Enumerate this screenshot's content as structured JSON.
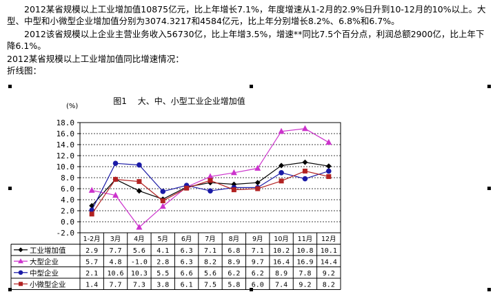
{
  "text": {
    "para1": "　　2012某省规模以上工业增加值10875亿元，比上年增长7.1%，年度增速从1-2月的2.9%日升到10-12月的10%以上。大型、中型和小微型企业增加值分别为3074.3217和4584亿元，比上年分别增长8.2%、6.8%和6.7%。",
    "para2": "　　2012该省规模以上企业主营业务收入56730亿，比上年增3.5%，增速**同比7.5个百分点，利润总额2900亿，比上年下降6.1%。",
    "para3": "2012某省规模以上工业增加值同比增速情况：",
    "para4": "折线图："
  },
  "chart_data": {
    "type": "line",
    "title": "图1　 大、中、小型工业企业增加值",
    "unit_label": "(%)",
    "ylim": [
      -2.0,
      18.0
    ],
    "yticks": [
      "18.0",
      "16.0",
      "14.0",
      "12.0",
      "10.0",
      "8.0",
      "6.0",
      "4.0",
      "2.0",
      "0.0",
      "-2.0"
    ],
    "categories": [
      "1-2月",
      "3月",
      "4月",
      "5月",
      "6月",
      "7月",
      "8月",
      "9月",
      "10月",
      "11月",
      "12月"
    ],
    "grid": true,
    "legend": "table-bottom",
    "series": [
      {
        "name": "工业增加值",
        "color": "#000000",
        "marker": "diamond",
        "values": [
          2.9,
          7.7,
          5.6,
          4.1,
          6.3,
          7.1,
          6.8,
          7.1,
          10.2,
          10.8,
          10.1
        ],
        "labels": [
          "2.9",
          "7.7",
          "5.6",
          "4.1",
          "6.3",
          "7.1",
          "6.8",
          "7.1",
          "10.2",
          "10.8",
          "10.1"
        ]
      },
      {
        "name": "大型企业",
        "color": "#cc33cc",
        "marker": "triangle",
        "values": [
          5.7,
          4.8,
          -1.0,
          2.8,
          6.3,
          8.2,
          8.9,
          9.7,
          16.4,
          16.9,
          14.4
        ],
        "labels": [
          "5.7",
          "4.8",
          "-1.0",
          "2.8",
          "6.3",
          "8.2",
          "8.9",
          "9.7",
          "16.4",
          "16.9",
          "14.4"
        ]
      },
      {
        "name": "中型企业",
        "color": "#1a1aa6",
        "marker": "circle",
        "values": [
          2.1,
          10.6,
          10.3,
          5.5,
          6.6,
          5.6,
          6.2,
          6.2,
          8.9,
          7.8,
          9.2
        ],
        "labels": [
          "2.1",
          "10.6",
          "10.3",
          "5.5",
          "6.6",
          "5.6",
          "6.2",
          "6.2",
          "8.9",
          "7.8",
          "9.2"
        ]
      },
      {
        "name": "小微型企业",
        "color": "#b22222",
        "marker": "square",
        "values": [
          1.4,
          7.7,
          7.3,
          3.8,
          6.1,
          7.5,
          5.8,
          6.0,
          7.4,
          9.2,
          8.2
        ],
        "labels": [
          "1.4",
          "7.7",
          "7.3",
          "3.8",
          "6.1",
          "7.5",
          "5.8",
          "6.0",
          "7.4",
          "9.2",
          "8.2"
        ]
      }
    ]
  }
}
